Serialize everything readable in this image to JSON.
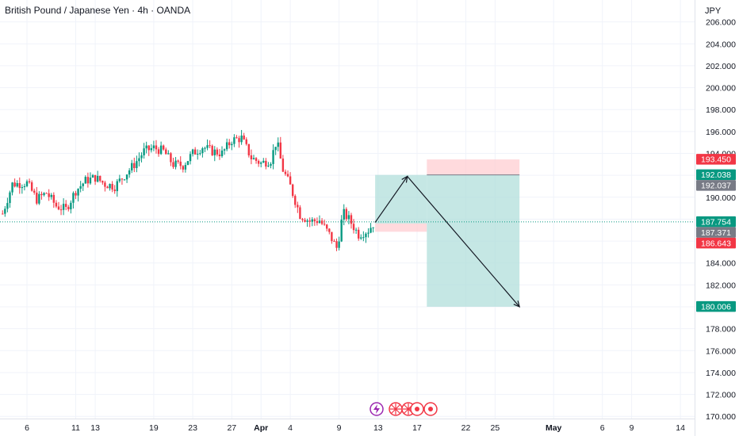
{
  "header": {
    "title": "British Pound / Japanese Yen · 4h · OANDA",
    "currency": "JPY"
  },
  "colors": {
    "up": "#089981",
    "down": "#f23645",
    "grid": "#f0f3fa",
    "axis_text": "#131722",
    "profit_zone": "#b2dfdb",
    "loss_zone": "#ffcdd2"
  },
  "chart_data": {
    "type": "candlestick",
    "symbol": "GBPJPY",
    "interval": "4h",
    "ylim": [
      169.8,
      208.0
    ],
    "y_ticks": [
      "206.000",
      "204.000",
      "202.000",
      "200.000",
      "198.000",
      "196.000",
      "194.000",
      "192.000",
      "190.000",
      "188.000",
      "186.000",
      "184.000",
      "182.000",
      "180.000",
      "178.000",
      "176.000",
      "174.000",
      "172.000",
      "170.000"
    ],
    "x_ticks": [
      {
        "label": "6",
        "x": 0
      },
      {
        "label": "11",
        "x": 5
      },
      {
        "label": "13",
        "x": 7
      },
      {
        "label": "19",
        "x": 13
      },
      {
        "label": "23",
        "x": 17
      },
      {
        "label": "27",
        "x": 21
      },
      {
        "label": "Apr",
        "x": 24
      },
      {
        "label": "4",
        "x": 27
      },
      {
        "label": "9",
        "x": 32
      },
      {
        "label": "13",
        "x": 36
      },
      {
        "label": "17",
        "x": 40
      },
      {
        "label": "22",
        "x": 45
      },
      {
        "label": "25",
        "x": 48
      },
      {
        "label": "May",
        "x": 54
      },
      {
        "label": "6",
        "x": 59
      },
      {
        "label": "9",
        "x": 62
      },
      {
        "label": "14",
        "x": 67
      }
    ],
    "price_path": [
      {
        "x": -2.5,
        "p": 188.5
      },
      {
        "x": -1.5,
        "p": 191.2
      },
      {
        "x": 0,
        "p": 191.3
      },
      {
        "x": 1,
        "p": 189.8
      },
      {
        "x": 2,
        "p": 190.4
      },
      {
        "x": 3,
        "p": 189.2
      },
      {
        "x": 4,
        "p": 188.9
      },
      {
        "x": 5,
        "p": 190.6
      },
      {
        "x": 6,
        "p": 191.5
      },
      {
        "x": 7,
        "p": 191.8
      },
      {
        "x": 8,
        "p": 191.2
      },
      {
        "x": 9,
        "p": 191.0
      },
      {
        "x": 10,
        "p": 192.0
      },
      {
        "x": 11,
        "p": 193.0
      },
      {
        "x": 12,
        "p": 194.2
      },
      {
        "x": 13,
        "p": 194.5
      },
      {
        "x": 14,
        "p": 194.2
      },
      {
        "x": 15,
        "p": 193.0
      },
      {
        "x": 16,
        "p": 192.9
      },
      {
        "x": 17,
        "p": 194.0
      },
      {
        "x": 18,
        "p": 194.6
      },
      {
        "x": 19,
        "p": 194.2
      },
      {
        "x": 20,
        "p": 194.0
      },
      {
        "x": 21,
        "p": 195.2
      },
      {
        "x": 22,
        "p": 195.4
      },
      {
        "x": 23,
        "p": 193.6
      },
      {
        "x": 24,
        "p": 193.1
      },
      {
        "x": 25,
        "p": 193.4
      },
      {
        "x": 25.6,
        "p": 195.2
      },
      {
        "x": 26.2,
        "p": 192.6
      },
      {
        "x": 27,
        "p": 191.0
      },
      {
        "x": 28,
        "p": 188.4
      },
      {
        "x": 29,
        "p": 187.8
      },
      {
        "x": 30,
        "p": 187.9
      },
      {
        "x": 31,
        "p": 186.6
      },
      {
        "x": 31.8,
        "p": 185.3
      },
      {
        "x": 32.4,
        "p": 188.6
      },
      {
        "x": 33,
        "p": 188.0
      },
      {
        "x": 34,
        "p": 186.6
      },
      {
        "x": 35,
        "p": 187.0
      },
      {
        "x": 35.6,
        "p": 187.7
      }
    ],
    "trade": {
      "entry": 187.371,
      "stop_loss": 193.45,
      "take_profit": 180.006,
      "current_price": 187.754,
      "levels": [
        "193.450",
        "192.038",
        "192.037",
        "187.754",
        "187.371",
        "186.643",
        "180.006"
      ],
      "projection_path": [
        {
          "x": 35.7,
          "p": 187.7
        },
        {
          "x": 39,
          "p": 191.9
        },
        {
          "x": 50.5,
          "p": 180.0
        }
      ],
      "small_box": {
        "x0": 35.7,
        "x1": 41,
        "top": 187.6,
        "bottom": 186.85
      },
      "long_green_box": {
        "x0": 35.7,
        "x1": 41,
        "top": 192.037,
        "bottom": 187.6
      },
      "short_red_box": {
        "x0": 41,
        "x1": 50.5,
        "top": 193.45,
        "bottom": 192.037
      },
      "short_green_box": {
        "x0": 41,
        "x1": 50.5,
        "top": 192.037,
        "bottom": 180.006
      }
    }
  }
}
